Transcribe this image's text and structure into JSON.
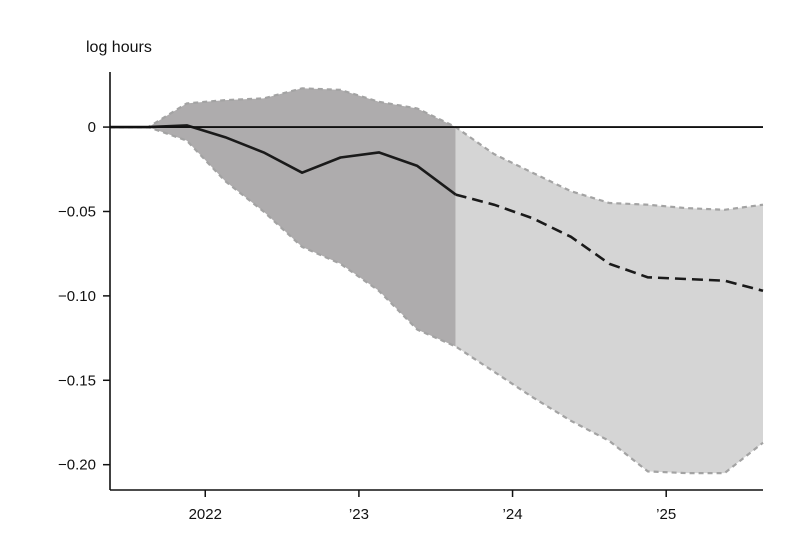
{
  "chart_data": {
    "type": "line",
    "ylabel": "log hours",
    "xlim": [
      2021.38,
      2025.63
    ],
    "ylim": [
      -0.215,
      0.035
    ],
    "grid": false,
    "x_ticks": [
      {
        "x": 2022.0,
        "label": "2022"
      },
      {
        "x": 2023.0,
        "label": "’23"
      },
      {
        "x": 2024.0,
        "label": "’24"
      },
      {
        "x": 2025.0,
        "label": "’25"
      }
    ],
    "y_ticks": [
      {
        "y": 0,
        "label": "0"
      },
      {
        "y": -0.05,
        "label": "−0.05"
      },
      {
        "y": -0.1,
        "label": "−0.10"
      },
      {
        "y": -0.15,
        "label": "−0.15"
      },
      {
        "y": -0.2,
        "label": "−0.20"
      }
    ],
    "zero_line": 0,
    "shade_split_x": 2023.63,
    "colors": {
      "band_dark": "#aeacad",
      "band_light": "#d5d5d5",
      "band_edge": "#a3a3a3",
      "line": "#1a1a1a",
      "axis": "#111111"
    },
    "point_estimate": {
      "x": [
        2021.38,
        2021.63,
        2021.88,
        2022.13,
        2022.38,
        2022.63,
        2022.88,
        2023.13,
        2023.38,
        2023.63,
        2023.88,
        2024.13,
        2024.38,
        2024.63,
        2024.88,
        2025.13,
        2025.38,
        2025.63
      ],
      "y": [
        0.0,
        0.0,
        0.001,
        -0.006,
        -0.015,
        -0.027,
        -0.018,
        -0.015,
        -0.023,
        -0.04,
        -0.046,
        -0.054,
        -0.065,
        -0.081,
        -0.089,
        -0.09,
        -0.091,
        -0.097
      ]
    },
    "upper_band": {
      "x": [
        2021.38,
        2021.63,
        2021.88,
        2022.13,
        2022.38,
        2022.63,
        2022.88,
        2023.13,
        2023.38,
        2023.63,
        2023.88,
        2024.13,
        2024.38,
        2024.63,
        2024.88,
        2025.13,
        2025.38,
        2025.63
      ],
      "y": [
        0.0,
        0.0,
        0.014,
        0.016,
        0.017,
        0.023,
        0.022,
        0.015,
        0.011,
        0.0,
        -0.016,
        -0.027,
        -0.038,
        -0.045,
        -0.046,
        -0.048,
        -0.049,
        -0.046
      ]
    },
    "lower_band": {
      "x": [
        2021.38,
        2021.63,
        2021.88,
        2022.13,
        2022.38,
        2022.63,
        2022.88,
        2023.13,
        2023.38,
        2023.63,
        2023.88,
        2024.13,
        2024.38,
        2024.63,
        2024.88,
        2025.13,
        2025.38,
        2025.63
      ],
      "y": [
        0.0,
        0.0,
        -0.008,
        -0.032,
        -0.05,
        -0.071,
        -0.081,
        -0.097,
        -0.12,
        -0.13,
        -0.145,
        -0.16,
        -0.174,
        -0.186,
        -0.204,
        -0.205,
        -0.205,
        -0.187
      ]
    }
  }
}
